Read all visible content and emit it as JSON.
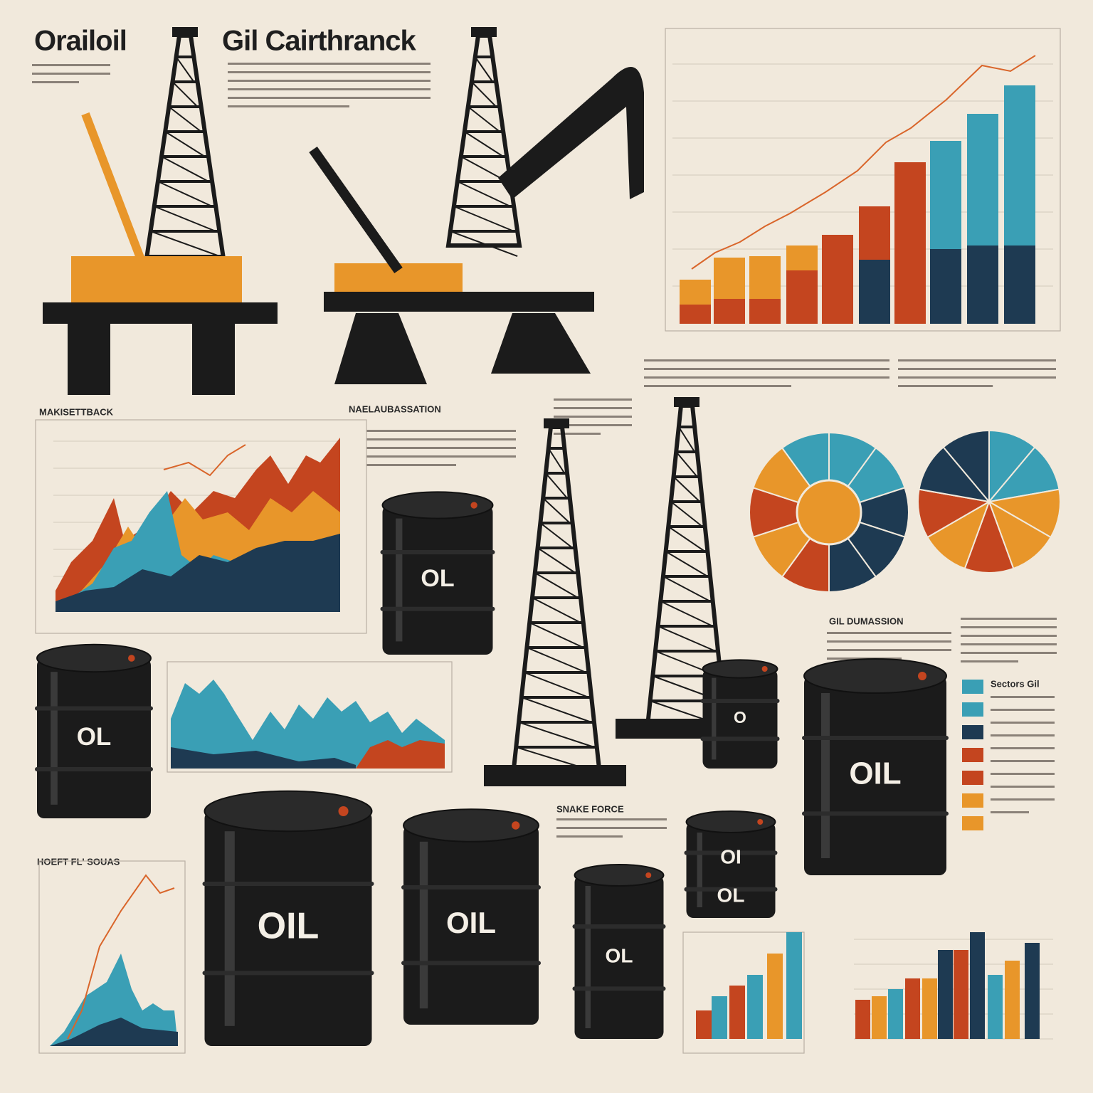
{
  "header": {
    "title_left": "Orailoil",
    "title_right": "Gil Cairthranck"
  },
  "sections": [
    "MAKISETTBACK",
    "NAELAUBASSATION",
    "GIL DUMASSION",
    "HOEFT FL' SOUAS",
    "SNAKE FORCE",
    "Sectors Gil"
  ],
  "barrels": [
    {
      "label": "OL"
    },
    {
      "label": "OL"
    },
    {
      "label": "O"
    },
    {
      "label": "OIL"
    },
    {
      "label": "OIL"
    },
    {
      "label": "OIL"
    },
    {
      "label": "OL"
    },
    {
      "label": "OI",
      "label2": "OL"
    }
  ]
}
